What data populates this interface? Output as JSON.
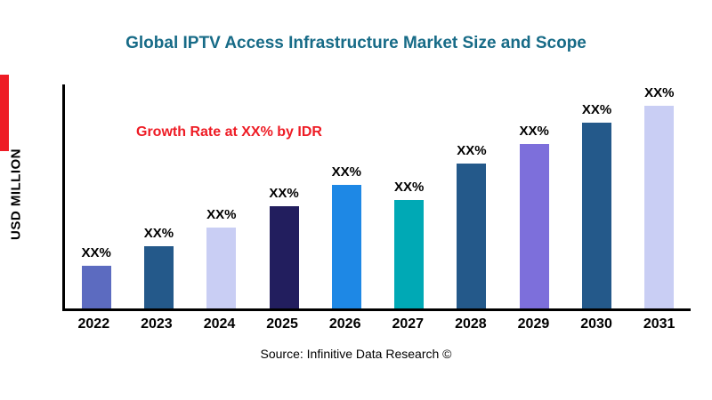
{
  "title": "Global IPTV Access Infrastructure Market Size and Scope",
  "y_axis_label": "USD MILLION",
  "annotation": "Growth Rate at XX% by IDR",
  "source": "Source: Infinitive Data Research ©",
  "colors": {
    "title": "#176B87",
    "annotation": "#EE1C25",
    "accent_bar": "#EE1C25",
    "axis": "#000000"
  },
  "chart_data": {
    "type": "bar",
    "title": "Global IPTV Access Infrastructure Market Size and Scope",
    "xlabel": "",
    "ylabel": "USD MILLION",
    "categories": [
      "2022",
      "2023",
      "2024",
      "2025",
      "2026",
      "2027",
      "2028",
      "2029",
      "2030",
      "2031"
    ],
    "values": [
      20,
      29,
      38,
      48,
      58,
      51,
      68,
      77,
      87,
      95
    ],
    "bar_labels": [
      "XX%",
      "XX%",
      "XX%",
      "XX%",
      "XX%",
      "XX%",
      "XX%",
      "XX%",
      "XX%",
      "XX%"
    ],
    "bar_colors": [
      "#5C6BC0",
      "#24598A",
      "#C9CEF4",
      "#221E5E",
      "#1E88E5",
      "#00A9B5",
      "#24598A",
      "#7D6FDB",
      "#24598A",
      "#C9CEF4"
    ],
    "ylim": [
      0,
      105
    ],
    "grid": false,
    "legend": "none",
    "annotation": "Growth Rate at XX% by IDR"
  }
}
